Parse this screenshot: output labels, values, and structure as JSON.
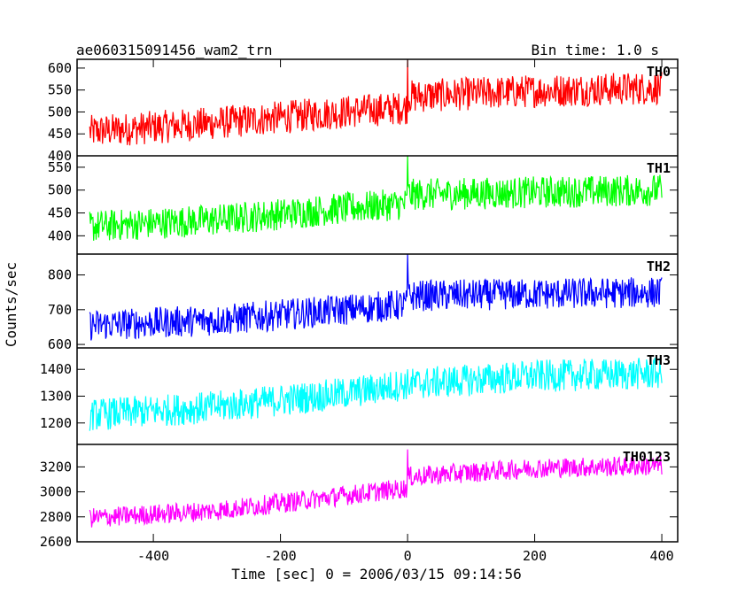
{
  "header": {
    "title": "ae060315091456_wam2_trn",
    "bin_time": "Bin time: 1.0 s"
  },
  "chart_data": {
    "type": "line",
    "title": "ae060315091456_wam2_trn",
    "subtitle": "Bin time: 1.0 s",
    "xlabel": "Time [sec] 0 = 2006/03/15 09:14:56",
    "ylabel": "Counts/sec",
    "xlim": [
      -520,
      425
    ],
    "xticks": [
      -400,
      -200,
      0,
      200,
      400
    ],
    "grid": false,
    "panels": [
      {
        "name": "TH0",
        "color": "#ff0000",
        "ylim": [
          400,
          620
        ],
        "yticks": [
          400,
          450,
          500,
          550,
          600
        ],
        "anchors": [
          [
            -500,
            455
          ],
          [
            -300,
            475
          ],
          [
            -100,
            500
          ],
          [
            -1,
            510
          ],
          [
            0,
            535
          ],
          [
            200,
            548
          ],
          [
            400,
            555
          ]
        ],
        "noise": 38,
        "spike": [
          0,
          620
        ]
      },
      {
        "name": "TH1",
        "color": "#00ff00",
        "ylim": [
          360,
          575
        ],
        "yticks": [
          400,
          450,
          500,
          550
        ],
        "anchors": [
          [
            -500,
            420
          ],
          [
            -300,
            435
          ],
          [
            -100,
            460
          ],
          [
            -1,
            470
          ],
          [
            0,
            490
          ],
          [
            200,
            495
          ],
          [
            400,
            500
          ]
        ],
        "noise": 35,
        "spike": [
          0,
          575
        ]
      },
      {
        "name": "TH2",
        "color": "#0000ff",
        "ylim": [
          590,
          860
        ],
        "yticks": [
          600,
          700,
          800
        ],
        "anchors": [
          [
            -500,
            655
          ],
          [
            -300,
            670
          ],
          [
            -100,
            700
          ],
          [
            -1,
            715
          ],
          [
            0,
            740
          ],
          [
            200,
            745
          ],
          [
            400,
            750
          ]
        ],
        "noise": 45,
        "spike": [
          0,
          860
        ]
      },
      {
        "name": "TH3",
        "color": "#00ffff",
        "ylim": [
          1120,
          1480
        ],
        "yticks": [
          1200,
          1300,
          1400
        ],
        "anchors": [
          [
            -500,
            1230
          ],
          [
            -300,
            1260
          ],
          [
            -100,
            1310
          ],
          [
            0,
            1345
          ],
          [
            200,
            1375
          ],
          [
            400,
            1385
          ]
        ],
        "noise": 60,
        "spike": null
      },
      {
        "name": "TH0123",
        "color": "#ff00ff",
        "ylim": [
          2600,
          3380
        ],
        "yticks": [
          2600,
          2800,
          3000,
          3200
        ],
        "anchors": [
          [
            -500,
            2790
          ],
          [
            -300,
            2850
          ],
          [
            -100,
            2970
          ],
          [
            -1,
            3030
          ],
          [
            0,
            3120
          ],
          [
            200,
            3190
          ],
          [
            400,
            3210
          ]
        ],
        "noise": 80,
        "spike": [
          0,
          3340
        ]
      }
    ]
  }
}
